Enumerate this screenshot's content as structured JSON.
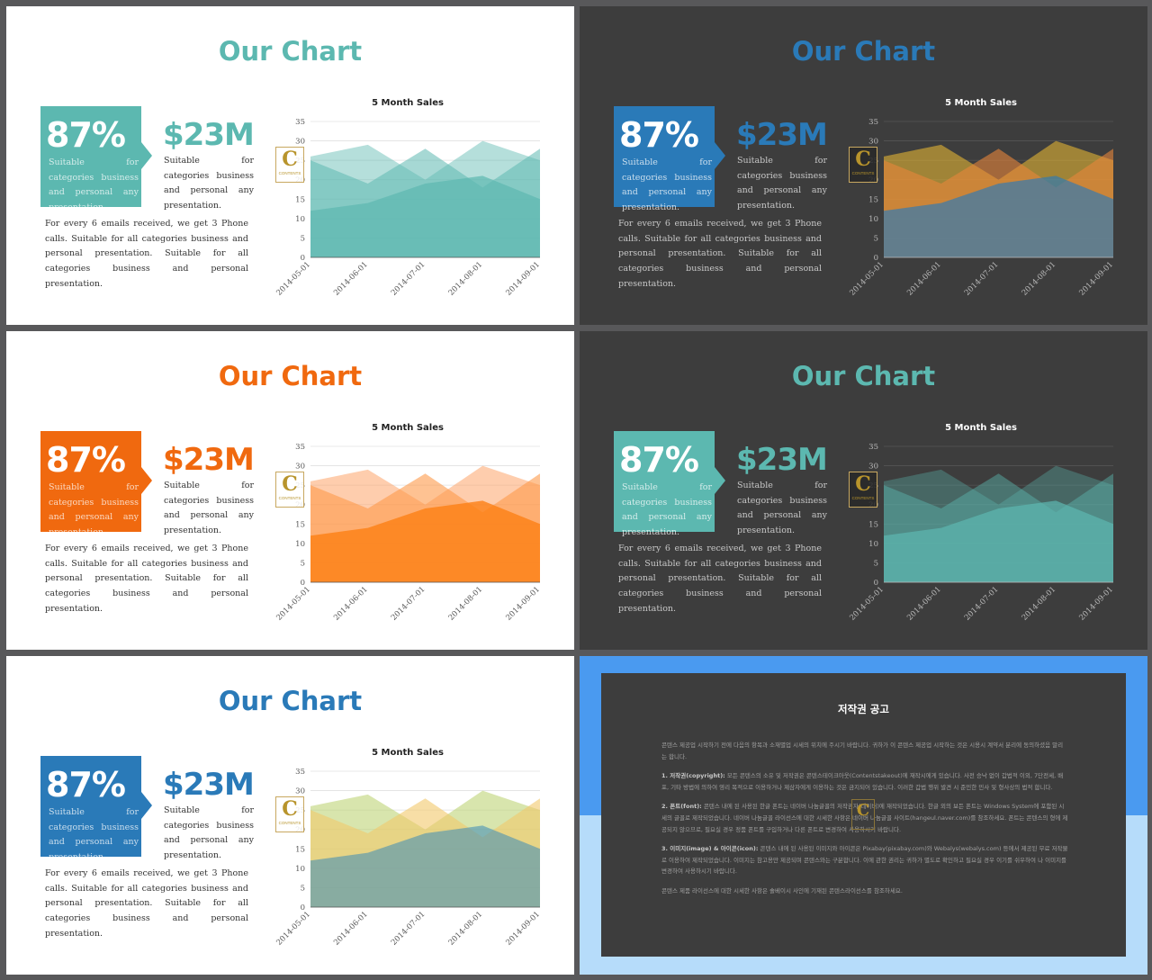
{
  "slides": [
    {
      "id": "s1",
      "title": "Our Chart",
      "percent": "87%",
      "percent_desc": "Suitable for categories business and personal any presentation.",
      "money": "$23M",
      "money_desc": "Suitable for categories business and personal any presentation.",
      "paragraph": "For every 6 emails received, we get 3 Phone calls. Suitable for all categories business and personal presentation. Suitable for all categories business and personal presentation.",
      "chart_title": "5 Month Sales"
    },
    {
      "id": "s2",
      "title": "Our Chart",
      "percent": "87%",
      "percent_desc": "Suitable for categories business and personal any presentation.",
      "money": "$23M",
      "money_desc": "Suitable for categories business and personal any presentation.",
      "paragraph": "For every 6 emails received, we get 3 Phone calls. Suitable for all categories business and personal presentation. Suitable for all categories business and personal presentation.",
      "chart_title": "5 Month Sales"
    },
    {
      "id": "s3",
      "title": "Our Chart",
      "percent": "87%",
      "percent_desc": "Suitable for categories business and personal any presentation.",
      "money": "$23M",
      "money_desc": "Suitable for categories business and personal any presentation.",
      "paragraph": "For every 6 emails received, we get 3 Phone calls. Suitable for all categories business and personal presentation. Suitable for all categories business and personal presentation.",
      "chart_title": "5 Month Sales"
    },
    {
      "id": "s4",
      "title": "Our Chart",
      "percent": "87%",
      "percent_desc": "Suitable for categories business and personal any presentation.",
      "money": "$23M",
      "money_desc": "Suitable for categories business and personal any presentation.",
      "paragraph": "For every 6 emails received, we get 3 Phone calls. Suitable for all categories business and personal presentation. Suitable for all categories business and personal presentation.",
      "chart_title": "5 Month Sales"
    },
    {
      "id": "s5",
      "title": "Our Chart",
      "percent": "87%",
      "percent_desc": "Suitable for categories business and personal any presentation.",
      "money": "$23M",
      "money_desc": "Suitable for categories business and personal any presentation.",
      "paragraph": "For every 6 emails received, we get 3 Phone calls. Suitable for all categories business and personal presentation. Suitable for all categories business and personal presentation.",
      "chart_title": "5 Month Sales"
    }
  ],
  "themes": {
    "s1": {
      "title": "#5cb8b0",
      "box": "#5cb8b0",
      "money": "#5cb8b0",
      "text": "#333333",
      "axis": "#555555",
      "grid": "#e0e0e0",
      "series_colors": [
        "#5cb8b0",
        "#5cb8b0",
        "#5cb8b0"
      ],
      "series_opacity": [
        0.45,
        0.55,
        0.7
      ]
    },
    "s2": {
      "title": "#2a7ab8",
      "box": "#2a7ab8",
      "money": "#2a7ab8",
      "text": "#c8c8c8",
      "axis": "#bbbbbb",
      "grid": "#555555",
      "series_colors": [
        "#f2c033",
        "#e8853a",
        "#2a7ab8"
      ],
      "series_opacity": [
        0.55,
        0.6,
        0.65
      ]
    },
    "s3": {
      "title": "#f0690f",
      "box": "#f0690f",
      "money": "#f0690f",
      "text": "#333333",
      "axis": "#555555",
      "grid": "#e0e0e0",
      "series_colors": [
        "#fda46a",
        "#fd9a4a",
        "#fd7f14"
      ],
      "series_opacity": [
        0.55,
        0.6,
        0.8
      ]
    },
    "s4": {
      "title": "#5cb8b0",
      "box": "#5cb8b0",
      "money": "#5cb8b0",
      "text": "#c8c8c8",
      "axis": "#bbbbbb",
      "grid": "#555555",
      "series_colors": [
        "#5cb8b0",
        "#5cb8b0",
        "#5cb8b0"
      ],
      "series_opacity": [
        0.35,
        0.45,
        0.7
      ]
    },
    "s5": {
      "title": "#2a7ab8",
      "box": "#2a7ab8",
      "money": "#2a7ab8",
      "text": "#333333",
      "axis": "#555555",
      "grid": "#e0e0e0",
      "series_colors": [
        "#b8d06a",
        "#f2c86a",
        "#3a8ab8"
      ],
      "series_opacity": [
        0.55,
        0.6,
        0.55
      ]
    }
  },
  "badge": {
    "letter": "C",
    "text": "CONTENTS"
  },
  "chart_data": {
    "type": "area",
    "title": "5 Month Sales",
    "x": [
      "2014-05-01",
      "2014-06-01",
      "2014-07-01",
      "2014-08-01",
      "2014-09-01"
    ],
    "ylim": [
      0,
      35
    ],
    "yticks": [
      0,
      5,
      10,
      15,
      20,
      25,
      30,
      35
    ],
    "series": [
      {
        "values": [
          26,
          29,
          20,
          30,
          25
        ]
      },
      {
        "values": [
          25,
          19,
          28,
          18,
          28
        ]
      },
      {
        "values": [
          12,
          14,
          19,
          21,
          15
        ]
      }
    ]
  },
  "notice": {
    "title": "저작권 공고",
    "intro": "콘텐스 제공업 시작하기 전에 다음의 항목과 소재별업 시세의 위치에 주시기 바랍니다. 귀하가 이 콘텐스 제공업 시작하는 것은 시용시 계약서 분리에 동의하셨음 말리는 합니다.",
    "p1_head": "1. 저작권(copyright):",
    "p1": "모든 콘텐스의 소유 및 저작권은 콘텐스테이크아웃(Contentstakeout)에 재작시에게 있습니다. 사전 승낙 없이 갑법적 이외, 7단전세, 배포, 기타 방법에 의하여 영리 목적으로 이용하거나 제삼자에게 이용하는 것은 금지되어 있습니다. 이러한 갑법 행위 발견 시 준민한 민사 및 형사상의 법적 합니다.",
    "p2_head": "2. 폰트(font):",
    "p2": "콘텐스 내에 된 사용된 한글 폰트는 네이버 나눔글꼴의 저작권자(네이버)에 재작되었습니다. 한글 외의 보든 폰트는 Windows System에 포함된 시세의 글꼴로 제작되었습니다. 네이버 나눔글꼴 라이선스에 대한 시세한 사항은 네이버 나눔글꼴 사이트(hangeul.naver.com)를 참조하세요. 폰트는 콘텐스의 형에 제공되지 않으므로, 필요실 경우 정품 폰트를 구입하거나 다른 폰트로 변경하여 사용하시기 바랍니다.",
    "p3_head": "3. 이미지(image) & 아이콘(icon):",
    "p3": "콘텐스 내에 된 사용된 이미지와 아이콘은 Pixabay(pixabay.com)와 Webalys(webalys.com) 등에서 제공된 무료 저작물로 이용하여 제작되었습니다. 이미지는 참고용만 제공되며 콘텐스와는 구분합니다. 이에 관한 권리는 귀하가 별도로 확인하고 필요실 경우 이기를 쉬우하여 나 이미지를 변경하여 사용하시기 바랍니다.",
    "outro": "콘텐스 제품 라이선스에 대한 시세한 사항은 솔베이시 사인에 기재된 콘텐스라이선스를 참조하세요."
  }
}
